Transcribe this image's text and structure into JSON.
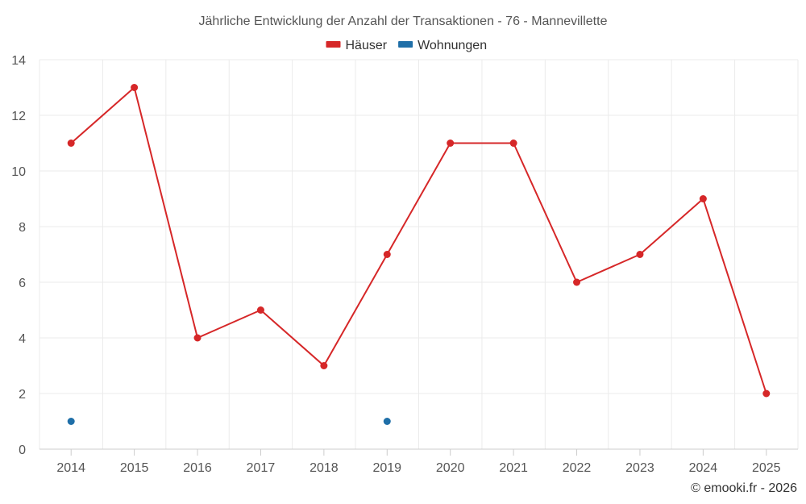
{
  "chart_data": {
    "type": "line",
    "title": "Jährliche Entwicklung der Anzahl der Transaktionen - 76 - Mannevillette",
    "xlabel": "",
    "ylabel": "",
    "categories": [
      "2014",
      "2015",
      "2016",
      "2017",
      "2018",
      "2019",
      "2020",
      "2021",
      "2022",
      "2023",
      "2024",
      "2025"
    ],
    "ylim": [
      0,
      14
    ],
    "yticks": [
      0,
      2,
      4,
      6,
      8,
      10,
      12,
      14
    ],
    "grid": true,
    "legend_position": "top-center",
    "series": [
      {
        "name": "Häuser",
        "color": "#d62728",
        "values": [
          11,
          13,
          4,
          5,
          3,
          7,
          11,
          11,
          6,
          7,
          9,
          2
        ],
        "show_line": true
      },
      {
        "name": "Wohnungen",
        "color": "#1f6fa8",
        "values": [
          1,
          null,
          null,
          null,
          null,
          1,
          null,
          null,
          null,
          null,
          null,
          null
        ],
        "show_line": true
      }
    ]
  },
  "credit": "© emooki.fr - 2026"
}
